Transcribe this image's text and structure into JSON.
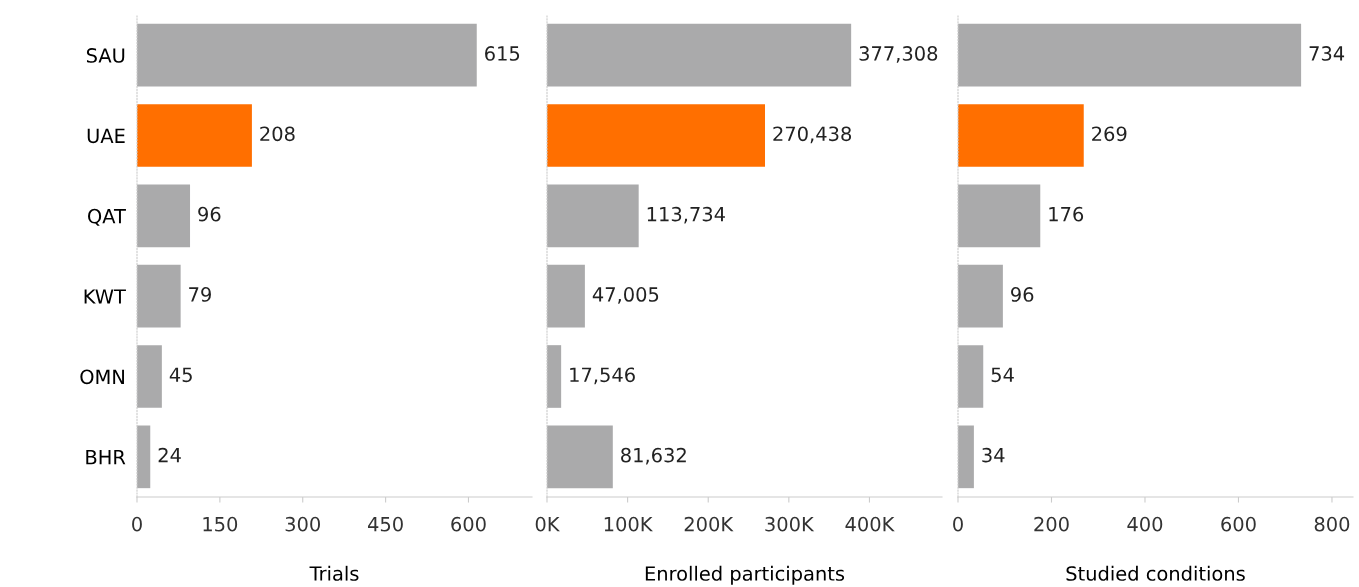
{
  "chart_data": [
    {
      "type": "bar",
      "orientation": "horizontal",
      "xlabel": "Trials",
      "categories": [
        "SAU",
        "UAE",
        "QAT",
        "KWT",
        "OMN",
        "BHR"
      ],
      "values": [
        615,
        208,
        96,
        79,
        45,
        24
      ],
      "colors": [
        "#aaaaab",
        "#ff6f00",
        "#aaaaab",
        "#aaaaab",
        "#aaaaab",
        "#aaaaab"
      ],
      "data_labels": true,
      "xlim": [
        0,
        715
      ],
      "xticks": [
        0,
        150,
        300,
        450,
        600
      ],
      "grid": false
    },
    {
      "type": "bar",
      "orientation": "horizontal",
      "xlabel": "Enrolled participants",
      "categories": [
        null,
        null,
        null,
        null,
        null,
        null
      ],
      "values": [
        377308,
        270438,
        113734,
        47005,
        17546,
        81632
      ],
      "colors": [
        "#aaaaab",
        "#ff6f00",
        "#aaaaab",
        "#aaaaab",
        "#aaaaab",
        "#aaaaab"
      ],
      "value_labels": [
        "377,308",
        "270,438",
        "113,734",
        "47,005",
        "17,546",
        "81,632"
      ],
      "xlim": [
        0,
        490000
      ],
      "xticks": [
        {
          "value": 0,
          "label": "0K"
        },
        {
          "value": 100000,
          "label": "100K"
        },
        {
          "value": 200000,
          "label": "200K"
        },
        {
          "value": 300000,
          "label": "300K"
        },
        {
          "value": 400000,
          "label": "400K"
        }
      ],
      "tick_labels": "x",
      "grid": false
    },
    {
      "type": "bar",
      "orientation": "horizontal",
      "xlabel": "Studied conditions",
      "categories": [
        null,
        null,
        null,
        null,
        null,
        null
      ],
      "values": [
        734,
        269,
        176,
        96,
        54,
        34
      ],
      "colors": [
        "#aaaaab",
        "#ff6f00",
        "#aaaaab",
        "#aaaaab",
        "#aaaaab",
        "#aaaaab"
      ],
      "data_labels": true,
      "xlim": [
        0,
        845
      ],
      "xticks": [
        0,
        200,
        400,
        600,
        800
      ],
      "tick_labels": "x",
      "grid": false
    }
  ]
}
